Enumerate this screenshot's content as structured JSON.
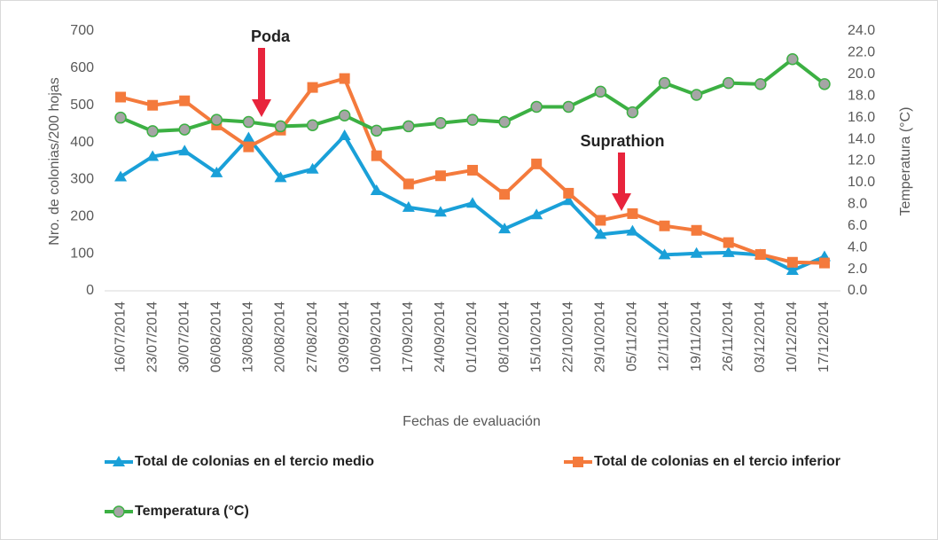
{
  "chart_data": {
    "type": "line",
    "categories": [
      "16/07/2014",
      "23/07/2014",
      "30/07/2014",
      "06/08/2014",
      "13/08/2014",
      "20/08/2014",
      "27/08/2014",
      "03/09/2014",
      "10/09/2014",
      "17/09/2014",
      "24/09/2014",
      "01/10/2014",
      "08/10/2014",
      "15/10/2014",
      "22/10/2014",
      "29/10/2014",
      "05/11/2014",
      "12/11/2014",
      "19/11/2014",
      "26/11/2014",
      "03/12/2014",
      "10/12/2014",
      "17/12/2014"
    ],
    "series": [
      {
        "name": "Total de colonias en el tercio medio",
        "color": "#1aa0d8",
        "marker": "triangle",
        "values": [
          307,
          362,
          377,
          318,
          412,
          305,
          328,
          418,
          270,
          225,
          212,
          236,
          167,
          205,
          243,
          152,
          161,
          97,
          101,
          103,
          97,
          55,
          92
        ]
      },
      {
        "name": "Total de colonias en el tercio inferior",
        "color": "#f47a3c",
        "marker": "square",
        "values": [
          522,
          500,
          512,
          447,
          388,
          433,
          548,
          572,
          364,
          288,
          310,
          325,
          260,
          342,
          263,
          190,
          208,
          175,
          163,
          130,
          98,
          77,
          75
        ]
      },
      {
        "name": "Temperatura (°C)",
        "color": "#3cb043",
        "marker": "circle",
        "axis": "y2",
        "values": [
          16.0,
          14.75,
          14.9,
          15.8,
          15.6,
          15.2,
          15.3,
          16.2,
          14.8,
          15.2,
          15.5,
          15.8,
          15.6,
          17.0,
          17.0,
          18.4,
          16.5,
          19.2,
          18.1,
          19.2,
          19.1,
          21.4,
          19.1
        ]
      }
    ],
    "xlabel": "Fechas de evaluación",
    "ylabel": "Nro. de colonias/200 hojas",
    "y2label": "Temperatura (°C)",
    "ylim": [
      0,
      700
    ],
    "yticks": [
      0,
      100,
      200,
      300,
      400,
      500,
      600,
      700
    ],
    "y2lim": [
      0,
      24
    ],
    "y2ticks": [
      {
        "value": 0,
        "label": "0.0"
      },
      {
        "value": 2,
        "label": "2.0"
      },
      {
        "value": 4,
        "label": "4.0"
      },
      {
        "value": 6,
        "label": "6.0"
      },
      {
        "value": 8,
        "label": "8.0"
      },
      {
        "value": 10,
        "label": "10.0"
      },
      {
        "value": 12,
        "label": "12.0"
      },
      {
        "value": 14,
        "label": "14.0"
      },
      {
        "value": 16,
        "label": "16.0"
      },
      {
        "value": 18,
        "label": "18.0"
      },
      {
        "value": 20,
        "label": "20.0"
      },
      {
        "value": 22,
        "label": "22.0"
      },
      {
        "value": 24,
        "label": "24.0"
      }
    ],
    "annotations": [
      "Poda",
      "Suprathion"
    ],
    "legend": "bottom"
  }
}
